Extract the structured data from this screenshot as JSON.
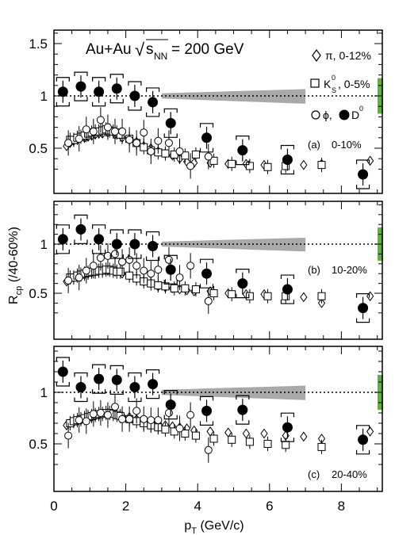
{
  "chart_data": [
    {
      "type": "scatter",
      "panel_label": "(a)",
      "centrality": "0-10%",
      "x_range": [
        0,
        9
      ],
      "ylim": [
        0.2,
        1.65
      ],
      "yticks": [
        0.5,
        1,
        1.5
      ],
      "ytick_labels": [
        "0.5",
        "1",
        "1.5"
      ],
      "series": [
        {
          "name": "π, 0-12%",
          "marker": "diamond-open",
          "x": [
            0.35,
            0.45,
            0.55,
            0.65,
            0.75,
            0.85,
            0.95,
            1.05,
            1.15,
            1.25,
            1.35,
            1.5,
            1.7,
            1.9,
            2.1,
            2.3,
            2.5,
            2.7,
            2.9,
            3.1,
            3.3,
            3.5,
            3.7,
            3.9,
            4.35,
            4.85,
            5.35,
            5.85,
            6.45,
            6.95,
            7.45,
            8.8
          ],
          "y": [
            0.52,
            0.55,
            0.57,
            0.58,
            0.6,
            0.6,
            0.61,
            0.62,
            0.63,
            0.64,
            0.64,
            0.65,
            0.63,
            0.6,
            0.58,
            0.56,
            0.52,
            0.5,
            0.47,
            0.45,
            0.43,
            0.4,
            0.37,
            0.36,
            0.36,
            0.35,
            0.35,
            0.34,
            0.34,
            0.34,
            0.35,
            0.38
          ]
        },
        {
          "name": "K0s, 0-5%",
          "marker": "square-open",
          "x": [
            0.45,
            0.55,
            0.65,
            0.75,
            0.85,
            0.95,
            1.05,
            1.15,
            1.25,
            1.35,
            1.45,
            1.55,
            1.65,
            1.75,
            1.85,
            2.1,
            2.3,
            2.5,
            2.7,
            2.9,
            3.1,
            3.35,
            3.65,
            3.95,
            4.45,
            4.95,
            5.45,
            5.95,
            6.45,
            7.45
          ],
          "y": [
            0.58,
            0.58,
            0.6,
            0.61,
            0.62,
            0.64,
            0.65,
            0.66,
            0.66,
            0.67,
            0.68,
            0.67,
            0.66,
            0.65,
            0.63,
            0.59,
            0.55,
            0.51,
            0.48,
            0.46,
            0.45,
            0.44,
            0.43,
            0.44,
            0.38,
            0.35,
            0.33,
            0.32,
            0.33,
            0.34
          ]
        },
        {
          "name": "φ",
          "marker": "circle-open",
          "x": [
            0.4,
            0.7,
            0.9,
            1.1,
            1.3,
            1.5,
            1.7,
            1.9,
            2.1,
            2.3,
            2.5,
            2.7,
            2.9,
            3.2,
            3.5,
            3.8,
            4.3
          ],
          "y": [
            0.55,
            0.59,
            0.68,
            0.66,
            0.77,
            0.7,
            0.66,
            0.66,
            0.58,
            0.55,
            0.65,
            0.47,
            0.57,
            0.55,
            0.47,
            0.33,
            0.42
          ]
        },
        {
          "name": "D0",
          "marker": "circle-filled",
          "x": [
            0.25,
            0.75,
            1.25,
            1.75,
            2.25,
            2.75,
            3.25,
            4.25,
            5.25,
            6.5,
            8.6
          ],
          "y": [
            1.04,
            1.09,
            1.04,
            1.07,
            1.0,
            0.94,
            0.74,
            0.6,
            0.48,
            0.39,
            0.25
          ]
        }
      ]
    },
    {
      "type": "scatter",
      "panel_label": "(b)",
      "centrality": "10-20%",
      "x_range": [
        0,
        9
      ],
      "ylim": [
        0.2,
        1.45
      ],
      "yticks": [
        0.5,
        1
      ],
      "ytick_labels": [
        "0.5",
        "1"
      ],
      "series": [
        {
          "name": "π, 0-12%",
          "marker": "diamond-open",
          "x": [
            0.35,
            0.45,
            0.55,
            0.65,
            0.75,
            0.85,
            0.95,
            1.05,
            1.15,
            1.25,
            1.35,
            1.5,
            1.7,
            1.9,
            2.1,
            2.3,
            2.5,
            2.7,
            2.9,
            3.1,
            3.3,
            3.5,
            3.7,
            3.9,
            4.35,
            4.85,
            5.35,
            5.85,
            6.45,
            6.95,
            7.45,
            8.8
          ],
          "y": [
            0.62,
            0.64,
            0.66,
            0.67,
            0.68,
            0.69,
            0.7,
            0.71,
            0.72,
            0.73,
            0.73,
            0.73,
            0.72,
            0.7,
            0.68,
            0.65,
            0.62,
            0.6,
            0.57,
            0.56,
            0.55,
            0.54,
            0.53,
            0.52,
            0.52,
            0.5,
            0.49,
            0.49,
            0.47,
            0.46,
            0.4,
            0.47
          ]
        },
        {
          "name": "K0s, 0-5%",
          "marker": "square-open",
          "x": [
            0.45,
            0.55,
            0.65,
            0.75,
            0.85,
            0.95,
            1.05,
            1.15,
            1.25,
            1.35,
            1.45,
            1.55,
            1.65,
            1.75,
            1.85,
            2.1,
            2.3,
            2.5,
            2.7,
            2.9,
            3.1,
            3.35,
            3.65,
            3.95,
            4.45,
            4.95,
            5.45,
            5.95,
            6.45,
            7.45
          ],
          "y": [
            0.66,
            0.66,
            0.68,
            0.69,
            0.7,
            0.71,
            0.72,
            0.72,
            0.73,
            0.73,
            0.74,
            0.74,
            0.73,
            0.72,
            0.72,
            0.68,
            0.65,
            0.62,
            0.6,
            0.58,
            0.57,
            0.55,
            0.55,
            0.54,
            0.5,
            0.49,
            0.47,
            0.47,
            0.47,
            0.47
          ]
        },
        {
          "name": "φ",
          "marker": "circle-open",
          "x": [
            0.4,
            0.7,
            0.9,
            1.1,
            1.3,
            1.5,
            1.7,
            1.9,
            2.1,
            2.3,
            2.5,
            2.7,
            2.9,
            3.2,
            3.5,
            3.8,
            4.3
          ],
          "y": [
            0.63,
            0.66,
            0.73,
            0.78,
            0.86,
            0.88,
            0.9,
            0.82,
            0.84,
            0.78,
            0.73,
            0.7,
            0.74,
            0.84,
            0.66,
            0.78,
            0.42
          ]
        },
        {
          "name": "D0",
          "marker": "circle-filled",
          "x": [
            0.25,
            0.75,
            1.25,
            1.75,
            2.25,
            2.75,
            3.25,
            4.25,
            5.25,
            6.5,
            8.6
          ],
          "y": [
            1.05,
            1.15,
            1.05,
            1.0,
            1.0,
            0.98,
            0.74,
            0.7,
            0.6,
            0.54,
            0.35
          ]
        }
      ]
    },
    {
      "type": "scatter",
      "panel_label": "(c)",
      "centrality": "20-40%",
      "x_range": [
        0,
        9
      ],
      "ylim": [
        0.2,
        1.45
      ],
      "yticks": [
        0.5,
        1
      ],
      "ytick_labels": [
        "0.5",
        "1"
      ],
      "xticks": [
        0,
        2,
        4,
        6,
        8
      ],
      "xtick_labels": [
        "0",
        "2",
        "4",
        "6",
        "8"
      ],
      "series": [
        {
          "name": "π, 0-12%",
          "marker": "diamond-open",
          "x": [
            0.35,
            0.45,
            0.55,
            0.65,
            0.75,
            0.85,
            0.95,
            1.05,
            1.15,
            1.25,
            1.35,
            1.5,
            1.7,
            1.9,
            2.1,
            2.3,
            2.5,
            2.7,
            2.9,
            3.1,
            3.3,
            3.5,
            3.7,
            3.9,
            4.35,
            4.85,
            5.35,
            5.85,
            6.45,
            6.95,
            7.45,
            8.8
          ],
          "y": [
            0.68,
            0.7,
            0.71,
            0.72,
            0.73,
            0.74,
            0.75,
            0.76,
            0.77,
            0.78,
            0.79,
            0.8,
            0.79,
            0.77,
            0.76,
            0.74,
            0.72,
            0.71,
            0.7,
            0.68,
            0.67,
            0.66,
            0.65,
            0.63,
            0.62,
            0.61,
            0.6,
            0.6,
            0.58,
            0.57,
            0.55,
            0.62
          ]
        },
        {
          "name": "K0s, 0-5%",
          "marker": "square-open",
          "x": [
            0.45,
            0.55,
            0.65,
            0.75,
            0.85,
            0.95,
            1.05,
            1.15,
            1.25,
            1.35,
            1.45,
            1.55,
            1.65,
            1.75,
            1.85,
            2.1,
            2.3,
            2.5,
            2.7,
            2.9,
            3.1,
            3.35,
            3.65,
            3.95,
            4.45,
            4.95,
            5.45,
            5.95,
            6.45,
            7.45
          ],
          "y": [
            0.7,
            0.72,
            0.73,
            0.74,
            0.75,
            0.76,
            0.77,
            0.78,
            0.79,
            0.79,
            0.8,
            0.8,
            0.79,
            0.78,
            0.77,
            0.74,
            0.72,
            0.7,
            0.68,
            0.66,
            0.64,
            0.62,
            0.6,
            0.58,
            0.55,
            0.54,
            0.52,
            0.5,
            0.49,
            0.47
          ]
        },
        {
          "name": "φ",
          "marker": "circle-open",
          "x": [
            0.4,
            0.7,
            0.9,
            1.1,
            1.3,
            1.5,
            1.7,
            1.9,
            2.1,
            2.3,
            2.5,
            2.7,
            2.9,
            3.2,
            3.5,
            3.8,
            4.3
          ],
          "y": [
            0.58,
            0.73,
            0.72,
            0.79,
            0.8,
            0.78,
            0.86,
            0.74,
            0.74,
            0.82,
            0.74,
            0.73,
            0.73,
            0.8,
            0.65,
            0.78,
            0.44
          ]
        },
        {
          "name": "D0",
          "marker": "circle-filled",
          "x": [
            0.25,
            0.75,
            1.25,
            1.75,
            2.25,
            2.75,
            3.25,
            4.25,
            5.25,
            6.5,
            8.6
          ],
          "y": [
            1.2,
            1.05,
            1.13,
            1.12,
            1.05,
            1.08,
            0.88,
            0.82,
            0.83,
            0.66,
            0.54
          ]
        }
      ]
    }
  ],
  "labels": {
    "system_text": "Au+Au",
    "sqrt_symbol": "√",
    "energy_s": "s",
    "energy_sub": "NN",
    "energy_value": "= 200 GeV",
    "legend_pi": "π, 0-12%",
    "legend_k0_k": "K",
    "legend_k0_sub": "S",
    "legend_k0_sup": "0",
    "legend_k0_rest": ", 0-5%",
    "legend_phi": "ϕ,",
    "legend_d0_d": "D",
    "legend_d0_sup": "0",
    "ylabel_r": "R",
    "ylabel_sub": "cp",
    "ylabel_rest": " (/40-60%)",
    "xlabel_p": "p",
    "xlabel_sub": "T",
    "xlabel_rest": " (GeV/c)",
    "panel_a_letter": "(a)",
    "panel_a_cent": "0-10%",
    "panel_b_letter": "(b)",
    "panel_b_cent": "10-20%",
    "panel_c_letter": "(c)",
    "panel_c_cent": "20-40%"
  },
  "colors": {
    "band": "#a9a9a9",
    "norm_bar": "#6aa84f",
    "marker": "#000000"
  }
}
